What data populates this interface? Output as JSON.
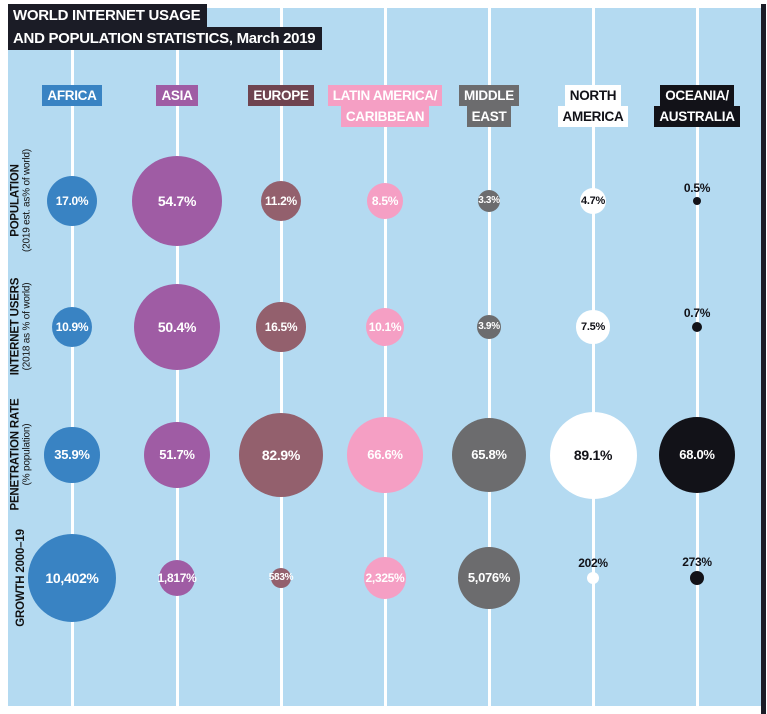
{
  "title": {
    "lines": [
      "WORLD INTERNET USAGE",
      "AND POPULATION STATISTICS, March 2019"
    ]
  },
  "colors": {
    "page_background": "#ffffff",
    "chart_background": "#b4daf1",
    "grid_line": "#ffffff",
    "title_bg": "#1b1c26",
    "title_text": "#ffffff",
    "dot_label_text": "#121218"
  },
  "chart_data": {
    "type": "bubble-matrix",
    "title": "WORLD INTERNET USAGE AND POPULATION STATISTICS, March 2019",
    "grid": "vertical-lines",
    "legend_position": "none",
    "columns": [
      {
        "name": "Africa",
        "label_lines": [
          "AFRICA"
        ],
        "color": "#3983c3",
        "header_bg": "#3983c3",
        "header_text": "#ffffff",
        "bubble_text": "#ffffff"
      },
      {
        "name": "Asia",
        "label_lines": [
          "ASIA"
        ],
        "color": "#9f5ca4",
        "header_bg": "#9f5ca4",
        "header_text": "#ffffff",
        "bubble_text": "#ffffff"
      },
      {
        "name": "Europe",
        "label_lines": [
          "EUROPE"
        ],
        "color": "#93606d",
        "header_bg": "#6f4450",
        "header_text": "#ffffff",
        "bubble_text": "#ffffff"
      },
      {
        "name": "Latin America/Caribbean",
        "label_lines": [
          "LATIN AMERICA/",
          "CARIBBEAN"
        ],
        "color": "#f59fc4",
        "header_bg": "#f59fc4",
        "header_text": "#ffffff",
        "bubble_text": "#ffffff"
      },
      {
        "name": "Middle East",
        "label_lines": [
          "MIDDLE",
          "EAST"
        ],
        "color": "#6c6c6e",
        "header_bg": "#6c6c6e",
        "header_text": "#ffffff",
        "bubble_text": "#ffffff"
      },
      {
        "name": "North America",
        "label_lines": [
          "NORTH",
          "AMERICA"
        ],
        "color": "#ffffff",
        "header_bg": "#ffffff",
        "header_text": "#121218",
        "bubble_text": "#121218"
      },
      {
        "name": "Oceania/Australia",
        "label_lines": [
          "OCEANIA/",
          "AUSTRALIA"
        ],
        "color": "#121218",
        "header_bg": "#121218",
        "header_text": "#ffffff",
        "bubble_text": "#ffffff"
      }
    ],
    "rows": [
      {
        "label": "POPULATION",
        "sublabel": "(2019 est. as% of world)",
        "values": [
          17.0,
          54.7,
          11.2,
          8.5,
          3.3,
          4.7,
          0.5
        ],
        "display": [
          "17.0%",
          "54.7%",
          "11.2%",
          "8.5%",
          "3.3%",
          "4.7%",
          "0.5%"
        ]
      },
      {
        "label": "INTERNET USERS",
        "sublabel": "(2018 as % of world)",
        "values": [
          10.9,
          50.4,
          16.5,
          10.1,
          3.9,
          7.5,
          0.7
        ],
        "display": [
          "10.9%",
          "50.4%",
          "16.5%",
          "10.1%",
          "3.9%",
          "7.5%",
          "0.7%"
        ]
      },
      {
        "label": "PENETRATION RATE",
        "sublabel": "(% population)",
        "values": [
          35.9,
          51.7,
          82.9,
          66.6,
          65.8,
          89.1,
          68.0
        ],
        "display": [
          "35.9%",
          "51.7%",
          "82.9%",
          "66.6%",
          "65.8%",
          "89.1%",
          "68.0%"
        ]
      },
      {
        "label": "GROWTH 2000–19",
        "sublabel": "",
        "values": [
          10402,
          1817,
          583,
          2325,
          5076,
          202,
          273
        ],
        "display": [
          "10,402%",
          "1,817%",
          "583%",
          "2,325%",
          "5,076%",
          "202%",
          "273%"
        ]
      }
    ]
  }
}
